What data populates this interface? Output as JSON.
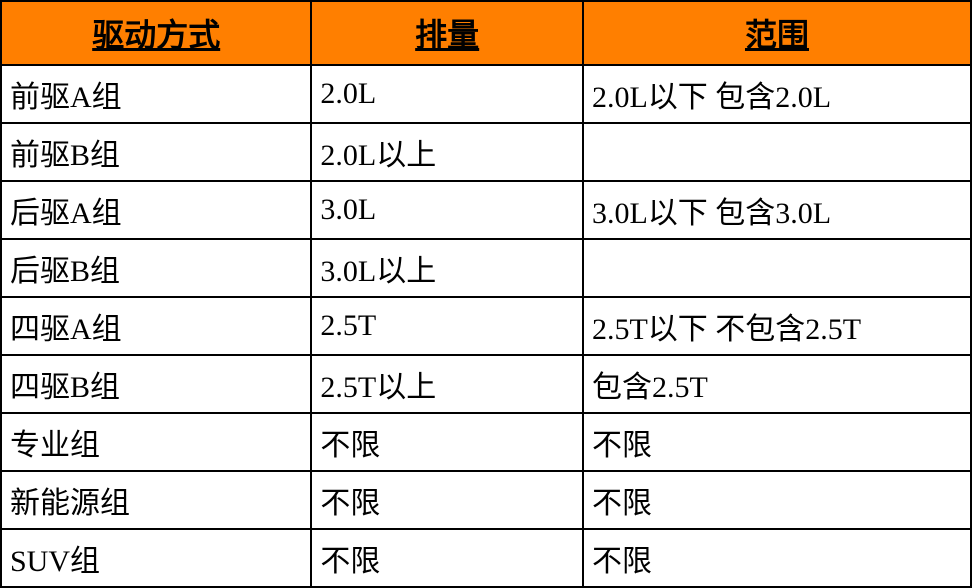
{
  "table": {
    "header_bg": "#ff7f00",
    "border_color": "#000000",
    "text_color": "#000000",
    "header_fontsize": 32,
    "cell_fontsize": 30,
    "columns": [
      {
        "label": "驱动方式",
        "width": "32%"
      },
      {
        "label": "排量",
        "width": "28%"
      },
      {
        "label": "范围",
        "width": "40%"
      }
    ],
    "rows": [
      {
        "c0": "前驱A组",
        "c1": "2.0L",
        "c2": "2.0L以下 包含2.0L"
      },
      {
        "c0": "前驱B组",
        "c1": "2.0L以上",
        "c2": ""
      },
      {
        "c0": "后驱A组",
        "c1": "3.0L",
        "c2": "3.0L以下 包含3.0L"
      },
      {
        "c0": "后驱B组",
        "c1": "3.0L以上",
        "c2": ""
      },
      {
        "c0": "四驱A组",
        "c1": "2.5T",
        "c2": "2.5T以下 不包含2.5T"
      },
      {
        "c0": "四驱B组",
        "c1": "2.5T以上",
        "c2": "包含2.5T"
      },
      {
        "c0": "专业组",
        "c1": "不限",
        "c2": "不限"
      },
      {
        "c0": "新能源组",
        "c1": "不限",
        "c2": "不限"
      },
      {
        "c0": "SUV组",
        "c1": "不限",
        "c2": "不限"
      }
    ]
  }
}
